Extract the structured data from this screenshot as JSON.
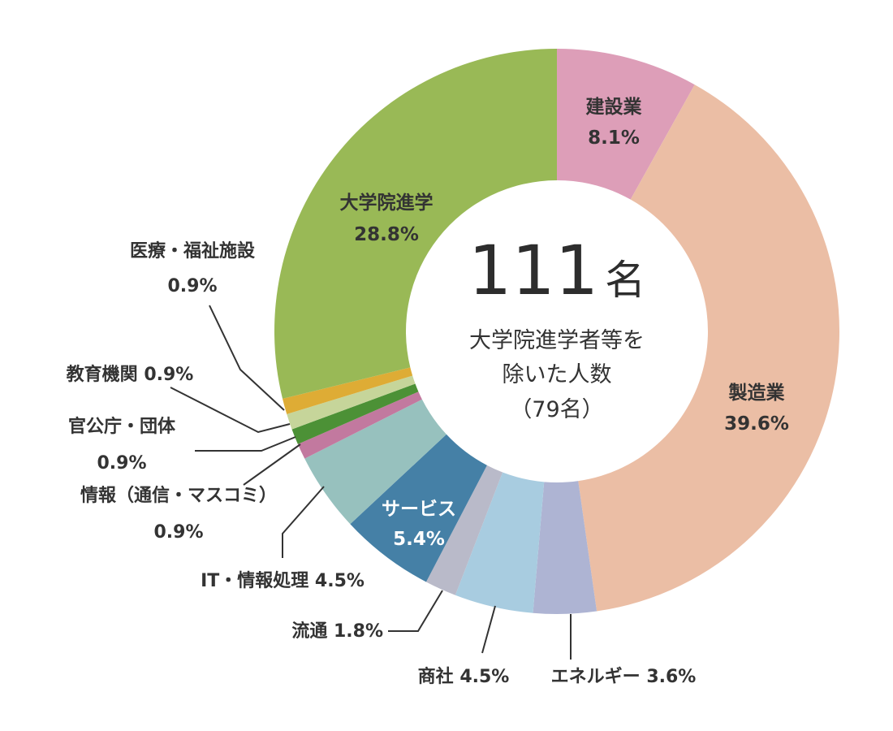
{
  "center": {
    "total_number": "111",
    "total_unit": "名",
    "note_line1": "大学院進学者等を",
    "note_line2": "除いた人数",
    "note_line3": "（79名）"
  },
  "chart_data": {
    "type": "pie",
    "total": 111,
    "slices": [
      {
        "label": "建設業",
        "value": 8.1,
        "color": "#DD9EB8"
      },
      {
        "label": "製造業",
        "value": 39.6,
        "color": "#EBBEA5"
      },
      {
        "label": "エネルギー",
        "value": 3.6,
        "color": "#AEB4D3"
      },
      {
        "label": "商社",
        "value": 4.5,
        "color": "#A8CCE0"
      },
      {
        "label": "流通",
        "value": 1.8,
        "color": "#B9BAC9"
      },
      {
        "label": "サービス",
        "value": 5.4,
        "color": "#4580A6"
      },
      {
        "label": "IT・情報処理",
        "value": 4.5,
        "color": "#97C1BE"
      },
      {
        "label": "情報（通信・マスコミ）",
        "value": 0.9,
        "color": "#C2799F"
      },
      {
        "label": "官公庁・団体",
        "value": 0.9,
        "color": "#4C9136"
      },
      {
        "label": "教育機関",
        "value": 0.9,
        "color": "#C6D59A"
      },
      {
        "label": "医療・福祉施設",
        "value": 0.9,
        "color": "#DEAC35"
      },
      {
        "label": "大学院進学",
        "value": 28.8,
        "color": "#99B956"
      }
    ],
    "labels": {
      "construction_name": "建設業",
      "construction_pct": "8.1%",
      "manufacturing_name": "製造業",
      "manufacturing_pct": "39.6%",
      "energy": "エネルギー 3.6%",
      "trading": "商社 4.5%",
      "distribution": "流通 1.8%",
      "service_name": "サービス",
      "service_pct": "5.4%",
      "it": "IT・情報処理 4.5%",
      "media_name": "情報（通信・マスコミ）",
      "media_pct": "0.9%",
      "gov_name": "官公庁・団体",
      "gov_pct": "0.9%",
      "education": "教育機関 0.9%",
      "medical_name": "医療・福祉施設",
      "medical_pct": "0.9%",
      "grad_name": "大学院進学",
      "grad_pct": "28.8%"
    }
  }
}
